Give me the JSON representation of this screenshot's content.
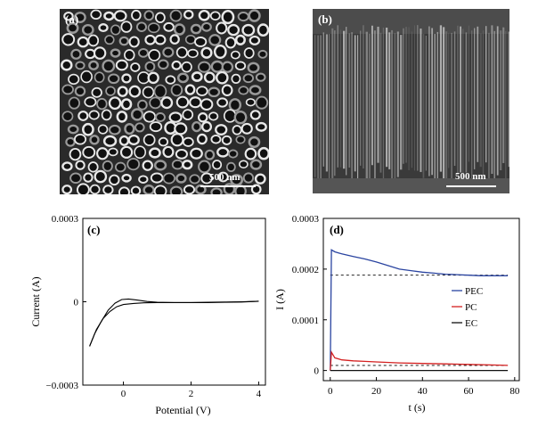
{
  "panels": {
    "a": {
      "label": "(a)",
      "scale_bar": "500 nm"
    },
    "b": {
      "label": "(b)",
      "scale_bar": "500 nm"
    }
  },
  "chart_data": [
    {
      "panel": "(c)",
      "type": "line",
      "xlabel": "Potential (V)",
      "ylabel": "Current (A)",
      "xlim": [
        -1.2,
        4.2
      ],
      "ylim": [
        -0.0003,
        0.0003
      ],
      "x_ticks": [
        0,
        2,
        4
      ],
      "x_tick_labels": [
        "0",
        "2",
        "4"
      ],
      "y_ticks": [
        -0.0003,
        0,
        0.0003
      ],
      "y_tick_labels": [
        "−0.0003",
        "0",
        "0.0003"
      ],
      "series": [
        {
          "x": [
            -1.0,
            -0.85,
            -0.65,
            -0.45,
            -0.25,
            -0.05,
            0.15,
            0.4,
            0.7,
            1.0,
            1.5,
            2.0,
            2.5,
            3.0,
            3.5,
            3.8,
            4.0
          ],
          "y": [
            -0.00016,
            -0.000115,
            -7e-05,
            -3e-05,
            -5e-06,
            8e-06,
            1e-05,
            6e-06,
            1e-06,
            -2e-06,
            -3e-06,
            -3e-06,
            -2e-06,
            -1e-06,
            0.0,
            1e-06,
            2e-06
          ]
        },
        {
          "x": [
            4.0,
            3.5,
            3.0,
            2.5,
            2.0,
            1.5,
            1.0,
            0.6,
            0.3,
            0.0,
            -0.2,
            -0.4,
            -0.6,
            -0.8,
            -1.0
          ],
          "y": [
            2e-06,
            -1e-06,
            -2e-06,
            -3e-06,
            -3e-06,
            -3e-06,
            -3e-06,
            -4e-06,
            -6e-06,
            -1e-05,
            -1.8e-05,
            -3.5e-05,
            -6e-05,
            -0.0001,
            -0.00016
          ]
        }
      ]
    },
    {
      "panel": "(d)",
      "type": "line",
      "xlabel": "t (s)",
      "ylabel": "I (A)",
      "xlim": [
        -3,
        82
      ],
      "ylim": [
        -2e-05,
        0.0003
      ],
      "x_ticks": [
        0,
        20,
        40,
        60,
        80
      ],
      "x_tick_labels": [
        "0",
        "20",
        "40",
        "60",
        "80"
      ],
      "y_ticks": [
        0,
        0.0001,
        0.0002,
        0.0003
      ],
      "y_tick_labels": [
        "0",
        "0.0001",
        "0.0002",
        "0.0003"
      ],
      "legend": [
        "PEC",
        "PC",
        "EC"
      ],
      "legend_placement": "right",
      "series": [
        {
          "name": "PEC",
          "color": "#2a44a0",
          "x": [
            0,
            0.5,
            2,
            5,
            10,
            15,
            20,
            25,
            30,
            35,
            40,
            45,
            50,
            55,
            60,
            65,
            70,
            75,
            77
          ],
          "y": [
            0.0,
            0.000238,
            0.000234,
            0.00023,
            0.000225,
            0.00022,
            0.000214,
            0.000207,
            0.0002,
            0.000197,
            0.000194,
            0.000192,
            0.00019,
            0.000189,
            0.000188,
            0.000187,
            0.000187,
            0.000187,
            0.000187
          ]
        },
        {
          "name": "PC",
          "color": "#d42020",
          "x": [
            0,
            0.5,
            2,
            5,
            10,
            15,
            20,
            30,
            40,
            50,
            60,
            70,
            77
          ],
          "y": [
            0.0,
            3.6e-05,
            2.5e-05,
            2.1e-05,
            1.9e-05,
            1.8e-05,
            1.7e-05,
            1.5e-05,
            1.4e-05,
            1.3e-05,
            1.2e-05,
            1.1e-05,
            1e-05
          ]
        },
        {
          "name": "EC",
          "color": "#111111",
          "x": [
            0,
            10,
            20,
            30,
            40,
            50,
            60,
            70,
            77
          ],
          "y": [
            0.0,
            0.0,
            0.0,
            0.0,
            0.0,
            0.0,
            0.0,
            0.0,
            0.0
          ]
        }
      ],
      "reference_lines": [
        {
          "y": 0.000188,
          "x_start": 0,
          "x_end": 77,
          "style": "dashed"
        },
        {
          "y": 1e-05,
          "x_start": 0,
          "x_end": 77,
          "style": "dashed"
        }
      ]
    }
  ]
}
